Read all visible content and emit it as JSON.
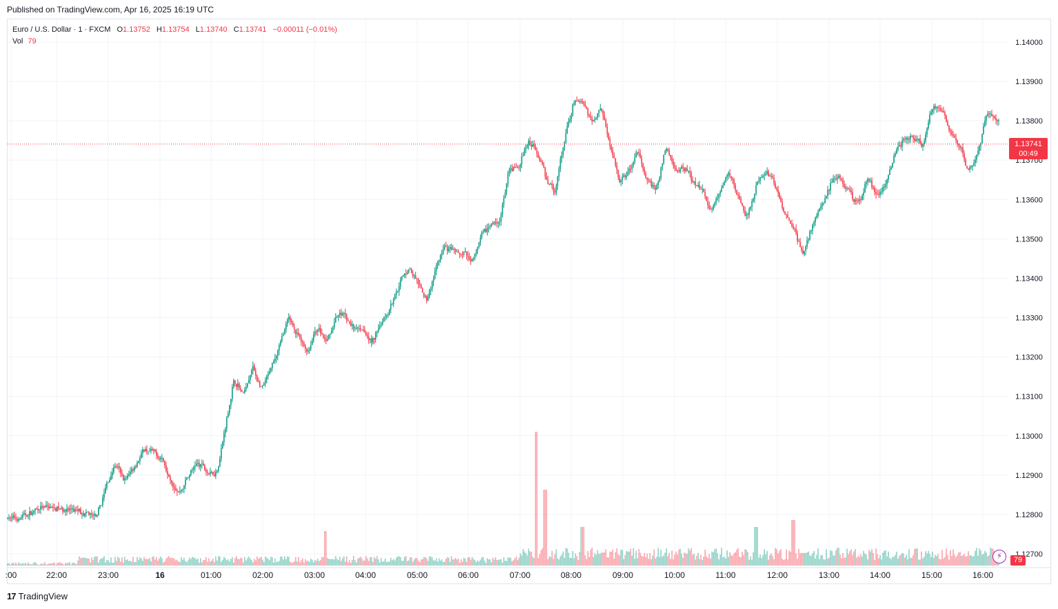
{
  "header": {
    "published": "Published on TradingView.com, Apr 16, 2025 16:19 UTC"
  },
  "legend": {
    "symbol": "Euro / U.S. Dollar · 1 · FXCM",
    "o_label": "O",
    "o": "1.13752",
    "h_label": "H",
    "h": "1.13754",
    "l_label": "L",
    "l": "1.13740",
    "c_label": "C",
    "c": "1.13741",
    "change": "−0.00011 (−0.01%)",
    "vol_label": "Vol",
    "vol": "79"
  },
  "price_tag": {
    "price": "1.13741",
    "countdown": "00:49"
  },
  "vol_tag": "79",
  "footer": {
    "brand": "TradingView",
    "logo": "17"
  },
  "colors": {
    "up": "#089981",
    "down": "#f23645",
    "grid": "#f0f3fa",
    "border": "#e0e3eb"
  },
  "chart_data": {
    "type": "candlestick",
    "symbol": "EUR/USD",
    "y_ticks": [
      "1.14000",
      "1.13900",
      "1.13800",
      "1.13700",
      "1.13600",
      "1.13500",
      "1.13400",
      "1.13300",
      "1.13200",
      "1.13100",
      "1.13000",
      "1.12900",
      "1.12800",
      "1.12700"
    ],
    "ylim": [
      1.1266,
      1.141
    ],
    "x_ticks": [
      ":00",
      "22:00",
      "23:00",
      "16",
      "01:00",
      "02:00",
      "03:00",
      "04:00",
      "05:00",
      "06:00",
      "07:00",
      "08:00",
      "09:00",
      "10:00",
      "11:00",
      "12:00",
      "13:00",
      "14:00",
      "15:00",
      "16:00"
    ],
    "last_price": 1.13741,
    "grid": true,
    "price_path": [
      [
        0,
        1.1279
      ],
      [
        4,
        1.1282
      ],
      [
        7,
        1.1281
      ],
      [
        9,
        1.1279
      ],
      [
        10,
        1.1287
      ],
      [
        11,
        1.1293
      ],
      [
        12,
        1.1288
      ],
      [
        14,
        1.1296
      ],
      [
        16,
        1.1295
      ],
      [
        17,
        1.1289
      ],
      [
        18,
        1.1285
      ],
      [
        19,
        1.129
      ],
      [
        20,
        1.1293
      ],
      [
        22,
        1.129
      ],
      [
        23,
        1.1302
      ],
      [
        24,
        1.1315
      ],
      [
        25,
        1.131
      ],
      [
        26,
        1.1318
      ],
      [
        27,
        1.1311
      ],
      [
        28,
        1.1317
      ],
      [
        29,
        1.1324
      ],
      [
        30,
        1.133
      ],
      [
        31,
        1.1325
      ],
      [
        32,
        1.1321
      ],
      [
        33,
        1.1328
      ],
      [
        34,
        1.1323
      ],
      [
        35,
        1.133
      ],
      [
        36,
        1.1331
      ],
      [
        37,
        1.1327
      ],
      [
        38,
        1.1328
      ],
      [
        39,
        1.1323
      ],
      [
        40,
        1.1329
      ],
      [
        41,
        1.1333
      ],
      [
        42,
        1.1339
      ],
      [
        43,
        1.1343
      ],
      [
        44,
        1.1338
      ],
      [
        45,
        1.1334
      ],
      [
        46,
        1.1343
      ],
      [
        47,
        1.1348
      ],
      [
        48,
        1.1346
      ],
      [
        49,
        1.1346
      ],
      [
        50,
        1.1344
      ],
      [
        51,
        1.1351
      ],
      [
        52,
        1.1354
      ],
      [
        53,
        1.1355
      ],
      [
        54,
        1.1368
      ],
      [
        55,
        1.1368
      ],
      [
        56,
        1.1375
      ],
      [
        57,
        1.1373
      ],
      [
        58,
        1.1365
      ],
      [
        59,
        1.1362
      ],
      [
        60,
        1.1376
      ],
      [
        61,
        1.1385
      ],
      [
        62,
        1.1385
      ],
      [
        63,
        1.1379
      ],
      [
        64,
        1.1384
      ],
      [
        65,
        1.1372
      ],
      [
        66,
        1.1364
      ],
      [
        67,
        1.1367
      ],
      [
        68,
        1.1372
      ],
      [
        69,
        1.1365
      ],
      [
        70,
        1.1362
      ],
      [
        71,
        1.1374
      ],
      [
        72,
        1.1367
      ],
      [
        73,
        1.1368
      ],
      [
        74,
        1.1365
      ],
      [
        75,
        1.1362
      ],
      [
        76,
        1.1357
      ],
      [
        77,
        1.1363
      ],
      [
        78,
        1.1367
      ],
      [
        79,
        1.136
      ],
      [
        80,
        1.1355
      ],
      [
        81,
        1.1365
      ],
      [
        82,
        1.1367
      ],
      [
        83,
        1.1363
      ],
      [
        84,
        1.1357
      ],
      [
        85,
        1.1352
      ],
      [
        86,
        1.1346
      ],
      [
        87,
        1.1354
      ],
      [
        88,
        1.1359
      ],
      [
        89,
        1.1364
      ],
      [
        90,
        1.1366
      ],
      [
        91,
        1.1362
      ],
      [
        92,
        1.1359
      ],
      [
        93,
        1.1365
      ],
      [
        94,
        1.1361
      ],
      [
        95,
        1.1364
      ],
      [
        96,
        1.1371
      ],
      [
        97,
        1.1376
      ],
      [
        98,
        1.1376
      ],
      [
        99,
        1.1373
      ],
      [
        100,
        1.1384
      ],
      [
        101,
        1.1383
      ],
      [
        102,
        1.1377
      ],
      [
        103,
        1.1374
      ],
      [
        104,
        1.1367
      ],
      [
        105,
        1.1372
      ],
      [
        106,
        1.1382
      ],
      [
        107,
        1.138
      ]
    ],
    "x_domain": [
      0,
      108
    ],
    "volume_spikes": [
      [
        57,
        0.97
      ],
      [
        58,
        0.55
      ],
      [
        34,
        0.25
      ],
      [
        62,
        0.28
      ],
      [
        85,
        0.33
      ],
      [
        81,
        0.28
      ]
    ]
  }
}
